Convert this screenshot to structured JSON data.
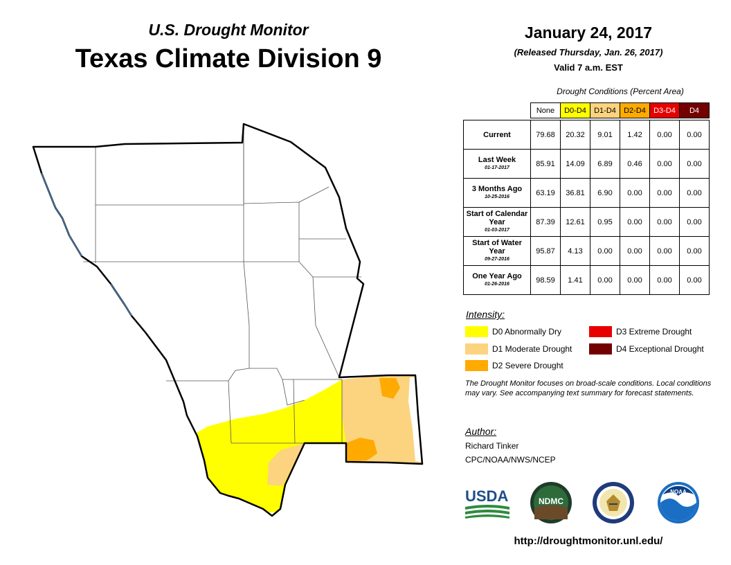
{
  "header": {
    "subtitle": "U.S. Drought Monitor",
    "title": "Texas Climate Division 9",
    "date": "January 24, 2017",
    "released": "(Released Thursday, Jan. 26, 2017)",
    "valid": "Valid 7 a.m. EST"
  },
  "table": {
    "caption": "Drought Conditions (Percent Area)",
    "columns": [
      "None",
      "D0-D4",
      "D1-D4",
      "D2-D4",
      "D3-D4",
      "D4"
    ],
    "column_colors": [
      "#ffffff",
      "#ffff00",
      "#fcd37f",
      "#ffaa00",
      "#e60000",
      "#730000"
    ],
    "rows": [
      {
        "label": "Current",
        "sub": "",
        "values": [
          "79.68",
          "20.32",
          "9.01",
          "1.42",
          "0.00",
          "0.00"
        ]
      },
      {
        "label": "Last Week",
        "sub": "01-17-2017",
        "values": [
          "85.91",
          "14.09",
          "6.89",
          "0.46",
          "0.00",
          "0.00"
        ]
      },
      {
        "label": "3 Months Ago",
        "sub": "10-25-2016",
        "values": [
          "63.19",
          "36.81",
          "6.90",
          "0.00",
          "0.00",
          "0.00"
        ]
      },
      {
        "label": "Start of Calendar Year",
        "sub": "01-03-2017",
        "values": [
          "87.39",
          "12.61",
          "0.95",
          "0.00",
          "0.00",
          "0.00"
        ]
      },
      {
        "label": "Start of Water Year",
        "sub": "09-27-2016",
        "values": [
          "95.87",
          "4.13",
          "0.00",
          "0.00",
          "0.00",
          "0.00"
        ]
      },
      {
        "label": "One Year Ago",
        "sub": "01-26-2016",
        "values": [
          "98.59",
          "1.41",
          "0.00",
          "0.00",
          "0.00",
          "0.00"
        ]
      }
    ]
  },
  "legend": {
    "label": "Intensity:",
    "items": [
      {
        "code": "D0",
        "text": "D0 Abnormally Dry",
        "color": "#ffff00"
      },
      {
        "code": "D1",
        "text": "D1 Moderate Drought",
        "color": "#fcd37f"
      },
      {
        "code": "D2",
        "text": "D2 Severe Drought",
        "color": "#ffaa00"
      },
      {
        "code": "D3",
        "text": "D3 Extreme Drought",
        "color": "#e60000"
      },
      {
        "code": "D4",
        "text": "D4 Exceptional Drought",
        "color": "#730000"
      }
    ]
  },
  "note": "The Drought Monitor focuses on broad-scale conditions. Local conditions may vary. See accompanying text summary for forecast statements.",
  "author": {
    "label": "Author:",
    "name": "Richard Tinker",
    "org": "CPC/NOAA/NWS/NCEP"
  },
  "logos": {
    "usda": "USDA",
    "ndmc": "NDMC",
    "noaa": "NOAA"
  },
  "url": "http://droughtmonitor.unl.edu/"
}
